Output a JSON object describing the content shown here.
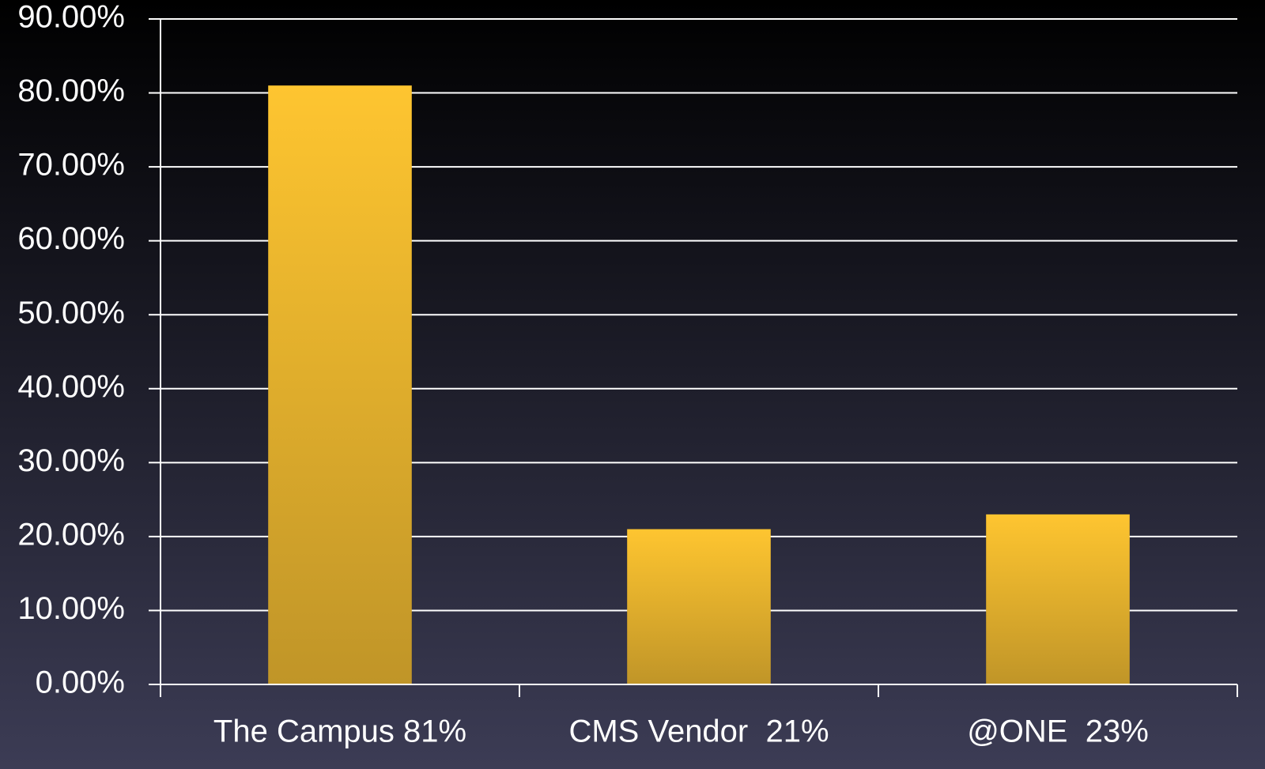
{
  "chart_data": {
    "type": "bar",
    "categories": [
      "The Campus 81%",
      "CMS Vendor  21%",
      "@ONE  23%"
    ],
    "values": [
      81,
      21,
      23
    ],
    "ylim": [
      0,
      90
    ],
    "yticks": [
      {
        "value": 0,
        "label": "0.00%"
      },
      {
        "value": 10,
        "label": "10.00%"
      },
      {
        "value": 20,
        "label": "20.00%"
      },
      {
        "value": 30,
        "label": "30.00%"
      },
      {
        "value": 40,
        "label": "40.00%"
      },
      {
        "value": 50,
        "label": "50.00%"
      },
      {
        "value": 60,
        "label": "60.00%"
      },
      {
        "value": 70,
        "label": "70.00%"
      },
      {
        "value": 80,
        "label": "80.00%"
      },
      {
        "value": 90,
        "label": "90.00%"
      }
    ],
    "grid": true
  }
}
